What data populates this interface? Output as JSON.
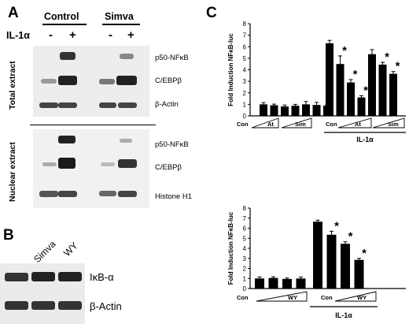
{
  "panels": {
    "A": "A",
    "B": "B",
    "C": "C"
  },
  "panel_a": {
    "groups": [
      "Control",
      "Simva"
    ],
    "il_label": "IL-1α",
    "signs": [
      "-",
      "+",
      "-",
      "+"
    ],
    "sections": [
      "Total extract",
      "Nuclear extract"
    ],
    "total_bands": [
      "p50-NFκB",
      "C/EBPβ",
      "β-Actin"
    ],
    "nuclear_bands": [
      "p50-NFκB",
      "C/EBPβ",
      "Histone H1"
    ]
  },
  "panel_b": {
    "lanes": [
      "Simva",
      "WY"
    ],
    "bands": [
      "IκB-α",
      "β-Actin"
    ]
  },
  "chart_data": [
    {
      "type": "bar",
      "ylabel": "Fold Induction NFκB-luc",
      "ylim": [
        0,
        8
      ],
      "yticks": [
        0,
        1,
        2,
        3,
        4,
        5,
        6,
        7,
        8
      ],
      "groups": [
        {
          "label": "",
          "values": [
            1.0,
            0.92,
            0.82,
            0.88,
            1.0,
            0.95,
            0.9
          ],
          "errors": [
            0.15,
            0.1,
            0.12,
            0.12,
            0.25,
            0.22,
            0.1
          ],
          "stars": [
            false,
            false,
            false,
            false,
            false,
            false,
            false
          ]
        },
        {
          "label": "IL-1α",
          "values": [
            6.3,
            4.5,
            2.9,
            1.6,
            5.35,
            4.45,
            3.65
          ],
          "errors": [
            0.25,
            0.7,
            0.25,
            0.15,
            0.4,
            0.2,
            0.2
          ],
          "stars": [
            false,
            true,
            true,
            true,
            false,
            true,
            true
          ]
        }
      ],
      "xlabels": [
        "Con",
        "At",
        "Sim"
      ],
      "group_label": "IL-1α"
    },
    {
      "type": "bar",
      "ylabel": "Fold Induction NFκB-luc",
      "ylim": [
        0,
        8
      ],
      "yticks": [
        0,
        1,
        2,
        3,
        4,
        5,
        6,
        7,
        8
      ],
      "groups": [
        {
          "label": "",
          "values": [
            1.0,
            1.05,
            0.95,
            1.0
          ],
          "errors": [
            0.15,
            0.12,
            0.1,
            0.15
          ],
          "stars": [
            false,
            false,
            false,
            false
          ]
        },
        {
          "label": "IL-1α",
          "values": [
            6.65,
            5.35,
            4.45,
            2.85
          ],
          "errors": [
            0.15,
            0.35,
            0.2,
            0.15
          ],
          "stars": [
            false,
            true,
            true,
            true
          ]
        }
      ],
      "xlabels": [
        "Con",
        "WY"
      ],
      "group_label": "IL-1α"
    }
  ]
}
